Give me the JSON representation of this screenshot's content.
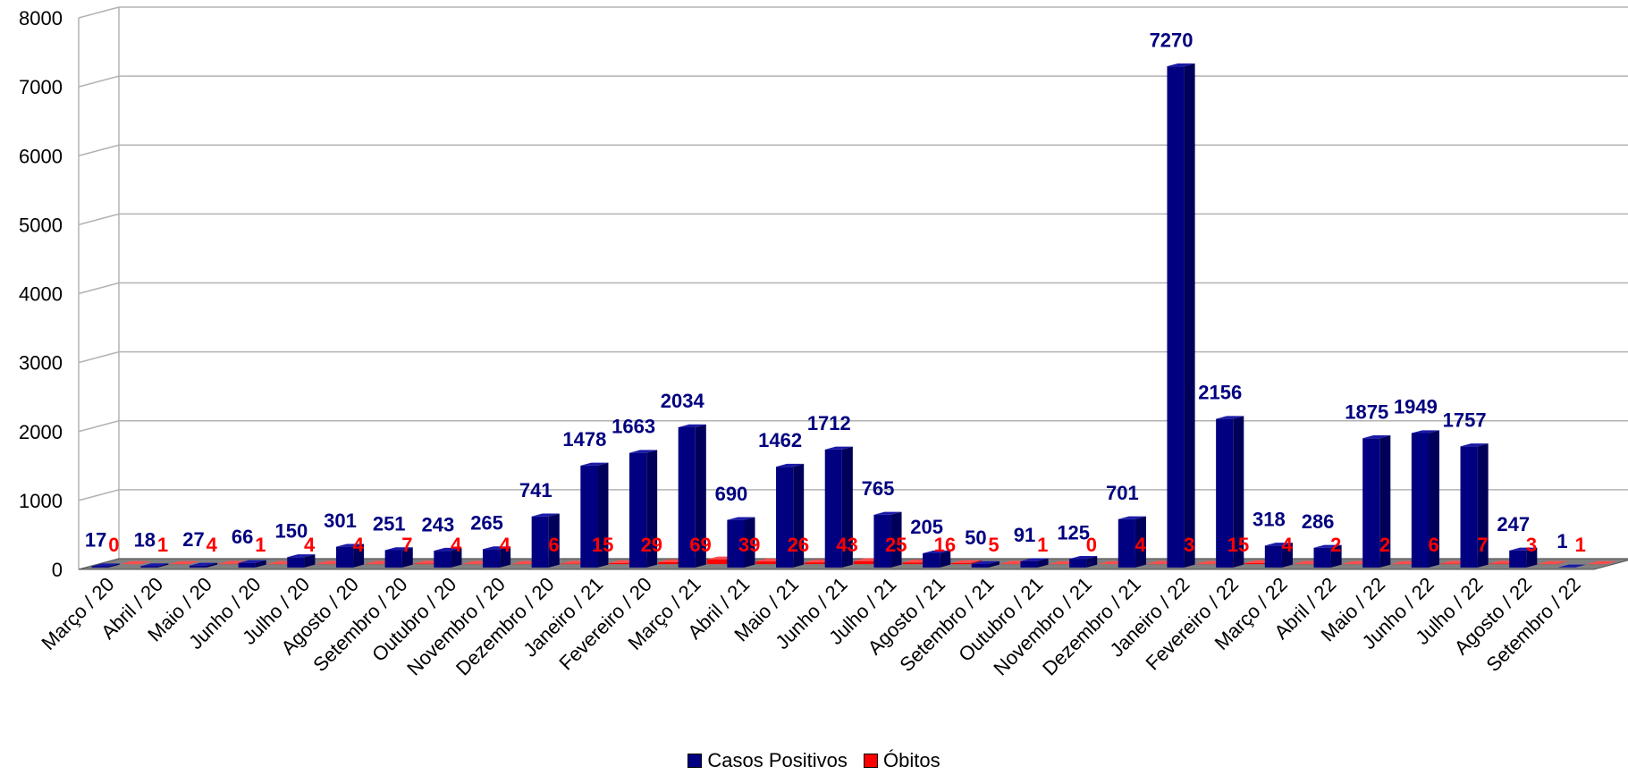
{
  "colors": {
    "casos": "#000080",
    "casos_side": "#00005a",
    "casos_top": "#1a1aa8",
    "obitos": "#ff0000",
    "obitos_side": "#b30000",
    "obitos_top": "#ff4d4d",
    "casos_label": "#000080",
    "obitos_label": "#ff0000",
    "grid": "#b3b3b3",
    "floor": "#808080"
  },
  "chart_data": {
    "type": "bar",
    "title": "",
    "xlabel": "",
    "ylabel": "",
    "ylim": [
      0,
      8000
    ],
    "yticks": [
      "0",
      "1000",
      "2000",
      "3000",
      "4000",
      "5000",
      "6000",
      "7000",
      "8000"
    ],
    "grid": true,
    "legend_position": "bottom",
    "categories": [
      "Março / 20",
      "Abril / 20",
      "Maio / 20",
      "Junho / 20",
      "Julho / 20",
      "Agosto / 20",
      "Setembro / 20",
      "Outubro / 20",
      "Novembro / 20",
      "Dezembro / 20",
      "Janeiro / 21",
      "Fevereiro / 20",
      "Março / 21",
      "Abril / 21",
      "Maio / 21",
      "Junho / 21",
      "Julho / 21",
      "Agosto / 21",
      "Setembro / 21",
      "Outubro / 21",
      "Novembro / 21",
      "Dezembro / 21",
      "Janeiro / 22",
      "Fevereiro / 22",
      "Março / 22",
      "Abril / 22",
      "Maio / 22",
      "Junho / 22",
      "Julho / 22",
      "Agosto / 22",
      "Setembro / 22"
    ],
    "series": [
      {
        "name": "Casos Positivos",
        "values": [
          17,
          18,
          27,
          66,
          150,
          301,
          251,
          243,
          265,
          741,
          1478,
          1663,
          2034,
          690,
          1462,
          1712,
          765,
          205,
          50,
          91,
          125,
          701,
          7270,
          2156,
          318,
          286,
          1875,
          1949,
          1757,
          247,
          1
        ]
      },
      {
        "name": "Óbitos",
        "values": [
          0,
          1,
          4,
          1,
          4,
          4,
          7,
          4,
          4,
          6,
          15,
          29,
          69,
          39,
          26,
          43,
          25,
          16,
          5,
          1,
          0,
          4,
          3,
          15,
          4,
          2,
          2,
          6,
          7,
          3,
          1
        ]
      }
    ]
  }
}
